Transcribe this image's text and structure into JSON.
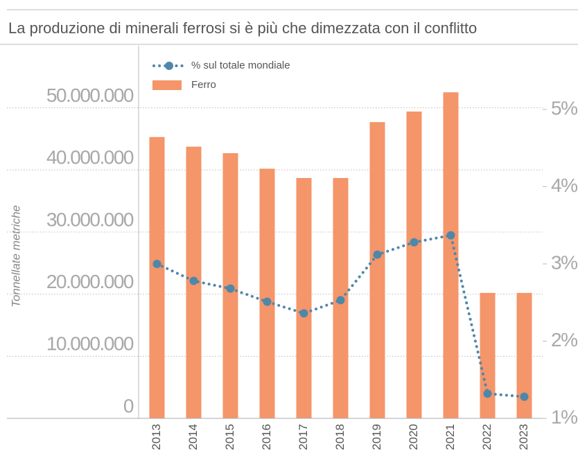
{
  "chart_data": {
    "type": "bar-line",
    "title": "La produzione di minerali ferrosi si è più che dimezzata con il conflitto",
    "y_label": "Tonnellate metriche",
    "categories": [
      "2013",
      "2014",
      "2015",
      "2016",
      "2017",
      "2018",
      "2019",
      "2020",
      "2021",
      "2022",
      "2023"
    ],
    "series": [
      {
        "name": "% sul totale mondiale",
        "color": "#4f87a8",
        "axis": "y2",
        "type": "line",
        "values": [
          3.0,
          2.78,
          2.68,
          2.51,
          2.36,
          2.53,
          3.12,
          3.28,
          3.37,
          1.32,
          1.28
        ]
      },
      {
        "name": "Ferro",
        "color": "#f4956a",
        "type": "bar",
        "values": [
          45300000,
          43750000,
          42700000,
          40200000,
          38700000,
          38700000,
          47700000,
          49400000,
          52500000,
          20200000,
          20200000
        ]
      }
    ],
    "ylim": [
      0,
      60000000
    ],
    "yticks": [
      0,
      {
        "value": 10000000,
        "label": "10.000.000"
      },
      {
        "value": 20000000,
        "label": "20.000.000"
      },
      {
        "value": 30000000,
        "label": "30.000.000"
      },
      {
        "value": 40000000,
        "label": "40.000.000"
      },
      {
        "value": 50000000,
        "label": "50.000.000"
      }
    ],
    "y2lim": [
      1,
      5.825
    ],
    "y2ticks": [
      {
        "value": 1,
        "label": "1%"
      },
      {
        "value": 2,
        "label": "2%"
      },
      {
        "value": 3,
        "label": "3%"
      },
      {
        "value": 4,
        "label": "4%"
      },
      {
        "value": 5,
        "label": "5%"
      }
    ],
    "grid": true,
    "legend": "top-left"
  }
}
